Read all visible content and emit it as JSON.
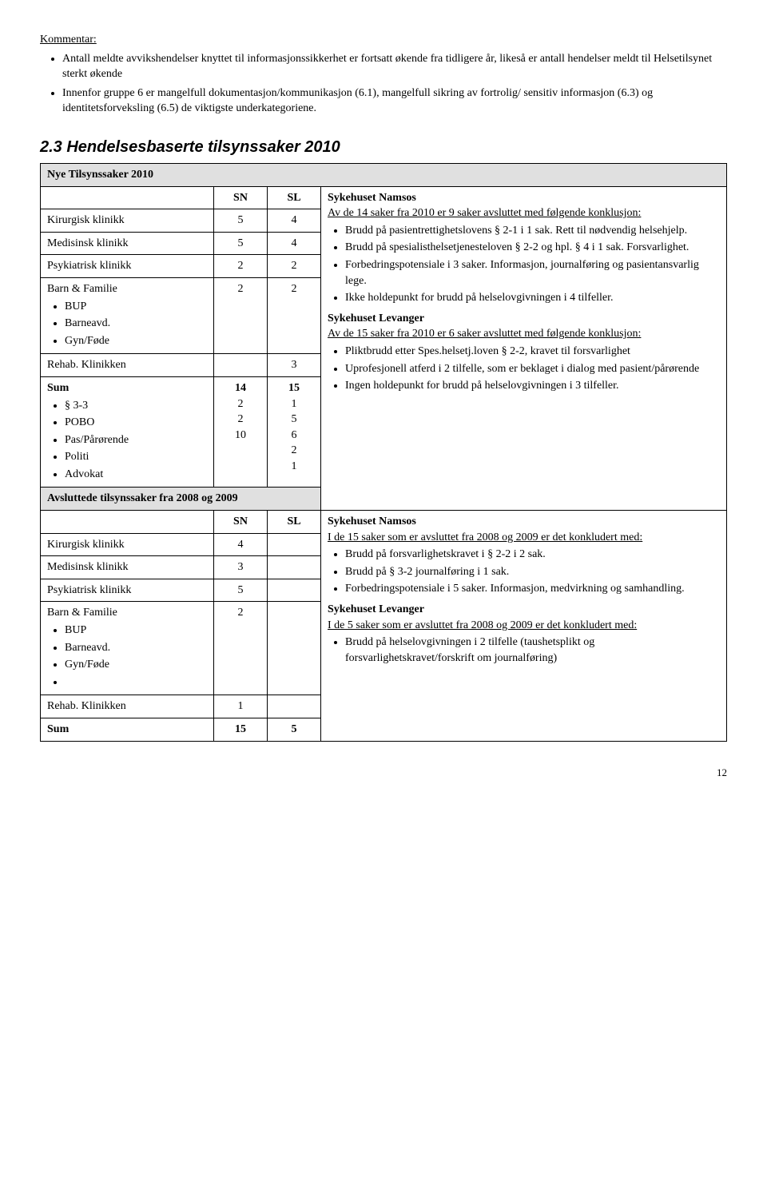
{
  "kommentar": {
    "heading": "Kommentar:",
    "b1": "Antall meldte avvikshendelser knyttet til informasjonssikkerhet er fortsatt økende fra tidligere år, likeså er antall hendelser meldt til Helsetilsynet sterkt økende",
    "b2": "Innenfor gruppe 6 er mangelfull dokumentasjon/kommunikasjon (6.1), mangelfull sikring av fortrolig/ sensitiv informasjon (6.3) og identitetsforveksling (6.5) de viktigste underkategoriene."
  },
  "section_title": "2.3 Hendelsesbaserte tilsynssaker 2010",
  "nye_header": "Nye Tilsynssaker 2010",
  "colSN": "SN",
  "colSL": "SL",
  "colSN2": "SN",
  "colSL2": "SL",
  "rows1": {
    "r1_label": "Kirurgisk klinikk",
    "r1_sn": "5",
    "r1_sl": "4",
    "r2_label": "Medisinsk klinikk",
    "r2_sn": "5",
    "r2_sl": "4",
    "r3_label": "Psykiatrisk klinikk",
    "r3_sn": "2",
    "r3_sl": "2",
    "r4_label": "Barn & Familie",
    "r4_sn": "2",
    "r4_sl": "2",
    "r4_s1": "BUP",
    "r4_s2": "Barneavd.",
    "r4_s3": "Gyn/Føde",
    "r5_label": "Rehab. Klinikken",
    "r5_sl": "3",
    "sum_label": "Sum",
    "sum_sn": "14",
    "sum_sl": "15",
    "sum_s1": "§ 3-3",
    "sum_s1_sn": "2",
    "sum_s1_sl": "1",
    "sum_s2": "POBO",
    "sum_s2_sn": "2",
    "sum_s2_sl": "5",
    "sum_s3": "Pas/Pårørende",
    "sum_s3_sn": "10",
    "sum_s3_sl": "6",
    "sum_s4": "Politi",
    "sum_s4_sl": "2",
    "sum_s5": "Advokat",
    "sum_s5_sl": "1"
  },
  "avsluttede_header": "Avsluttede tilsynssaker fra 2008 og 2009",
  "rows2": {
    "r1_label": "Kirurgisk klinikk",
    "r1_sn": "4",
    "r2_label": "Medisinsk klinikk",
    "r2_sn": "3",
    "r3_label": "Psykiatrisk klinikk",
    "r3_sn": "5",
    "r4_label": "Barn & Familie",
    "r4_sn": "2",
    "r4_s1": "BUP",
    "r4_s2": "Barneavd.",
    "r4_s3": "Gyn/Føde",
    "r5_label": "Rehab. Klinikken",
    "r5_sn": "1",
    "sum_label": "Sum",
    "sum_sn": "15",
    "sum_sl": "5"
  },
  "desc": {
    "h1": "Sykehuset Namsos",
    "p1": "Av de 14 saker fra 2010 er 9 saker avsluttet med følgende konklusjon:",
    "b1": "Brudd på pasientrettighetslovens § 2-1 i 1 sak. Rett til nødvendig helsehjelp.",
    "b2": "Brudd på spesialisthelsetjenesteloven § 2-2 og hpl. § 4 i 1 sak. Forsvarlighet.",
    "b3": "Forbedringspotensiale i 3 saker. Informasjon, journalføring og pasientansvarlig lege.",
    "b4": "Ikke holdepunkt for brudd på helselovgivningen i 4 tilfeller.",
    "h2": "Sykehuset Levanger",
    "p2": "Av de 15 saker fra 2010 er 6 saker avsluttet med følgende konklusjon:",
    "b5": "Pliktbrudd etter Spes.helsetj.loven § 2-2, kravet til forsvarlighet",
    "b6": "Uprofesjonell atferd i 2 tilfelle, som er beklaget i dialog med pasient/pårørende",
    "b7": "Ingen holdepunkt for brudd på helselovgivningen i 3 tilfeller."
  },
  "desc2": {
    "h1": "Sykehuset Namsos",
    "p1": "I de 15 saker som er avsluttet fra 2008 og 2009 er det konkludert med:",
    "b1": "Brudd på forsvarlighetskravet i § 2-2 i 2 sak.",
    "b2": "Brudd på § 3-2 journalføring i 1 sak.",
    "b3": "Forbedringspotensiale i 5 saker. Informasjon, medvirkning og samhandling.",
    "h2": "Sykehuset Levanger",
    "p2": "I de 5 saker som er avsluttet fra 2008 og 2009 er det konkludert med:",
    "b4": "Brudd på helselovgivningen i 2 tilfelle (taushetsplikt og forsvarlighetskravet/forskrift om journalføring)"
  },
  "page_number": "12"
}
